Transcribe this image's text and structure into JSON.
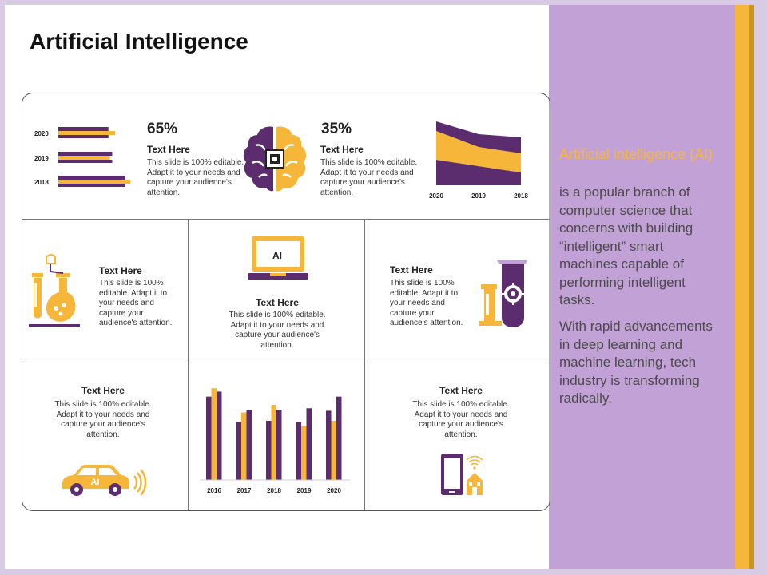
{
  "title": "Artificial Intelligence",
  "panel": {
    "heading": "Artificial intelligence (AI)",
    "paragraph1": "is a popular branch of computer science that concerns with building “intelligent” smart machines capable of performing intelligent tasks.",
    "paragraph2": "With rapid advancements in deep learning and machine learning, tech industry is transforming radically."
  },
  "colors": {
    "purple": "#5b2d6e",
    "orange": "#f5b63a",
    "panel": "#c2a2d6"
  },
  "blocks": {
    "top_left": {
      "percent": "65%",
      "heading": "Text Here",
      "body": "This slide is 100% editable. Adapt it to your needs and capture your audience's attention."
    },
    "top_right": {
      "percent": "35%",
      "heading": "Text Here",
      "body": "This slide is 100% editable. Adapt it to your needs and capture your audience's attention."
    },
    "mid_left": {
      "heading": "Text Here",
      "body": "This slide is 100% editable. Adapt it to your needs and capture your audience's attention."
    },
    "mid_center": {
      "heading": "Text Here",
      "body": "This slide is 100% editable. Adapt it to your needs and capture your audience's attention.",
      "laptop_label": "AI"
    },
    "mid_right": {
      "heading": "Text Here",
      "body": "This slide is 100% editable. Adapt it to your needs and capture your audience's attention."
    },
    "bottom_left": {
      "heading": "Text Here",
      "body": "This slide is 100% editable. Adapt it to your needs and capture your audience's attention.",
      "car_label": "AI"
    },
    "bottom_right": {
      "heading": "Text Here",
      "body": "This slide is 100% editable. Adapt it to your needs and capture your audience's attention."
    }
  },
  "icons": [
    "brain-chip-icon",
    "lab-flask-icon",
    "laptop-icon",
    "robot-test-tube-icon",
    "self-driving-car-icon",
    "smartphone-smart-home-icon"
  ],
  "chart_data": [
    {
      "type": "bar",
      "orientation": "horizontal",
      "categories": [
        "2020",
        "2019",
        "2018"
      ],
      "series": [
        {
          "values": [
            66,
            71,
            88
          ]
        },
        {
          "values": [
            75,
            68,
            95
          ]
        }
      ],
      "xlim": [
        0,
        100
      ]
    },
    {
      "type": "area",
      "categories": [
        "2020",
        "2019",
        "2018"
      ],
      "series": [
        {
          "values": [
            40,
            30,
            20
          ]
        },
        {
          "values": [
            45,
            30,
            30
          ]
        },
        {
          "values": [
            15,
            20,
            25
          ]
        }
      ],
      "ylim": [
        0,
        100
      ]
    },
    {
      "type": "bar",
      "categories": [
        "2016",
        "2017",
        "2018",
        "2019",
        "2020"
      ],
      "series": [
        {
          "values": [
            100,
            70,
            71,
            70,
            83
          ]
        },
        {
          "values": [
            110,
            81,
            90,
            65,
            71
          ]
        },
        {
          "values": [
            106,
            84,
            84,
            86,
            100
          ]
        }
      ],
      "ylim": [
        0,
        115
      ]
    }
  ]
}
